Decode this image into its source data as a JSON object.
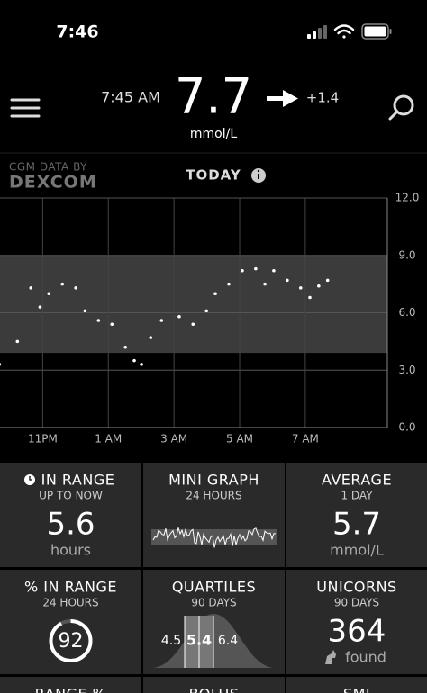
{
  "status_bar": {
    "time": "7:46"
  },
  "header": {
    "reading_time": "7:45 AM",
    "value": "7.7",
    "unit": "mmol/L",
    "delta": "+1.4"
  },
  "source": {
    "line1": "CGM DATA BY",
    "line2": "DEXCOM"
  },
  "chart_data": {
    "type": "scatter",
    "title": "TODAY",
    "x": [
      -2.32,
      -1.77,
      -1.36,
      -1.08,
      -0.81,
      -0.4,
      0.01,
      0.29,
      0.7,
      1.11,
      1.52,
      1.79,
      2.01,
      2.29,
      2.62,
      3.16,
      3.58,
      3.99,
      4.26,
      4.67,
      5.08,
      5.49,
      5.77,
      6.04,
      6.45,
      6.86,
      7.14,
      7.41,
      7.68
    ],
    "values": [
      3.3,
      4.5,
      7.3,
      6.3,
      7.0,
      7.5,
      7.3,
      6.1,
      5.6,
      5.4,
      4.2,
      3.5,
      3.3,
      4.7,
      5.6,
      5.8,
      5.4,
      6.1,
      7.0,
      7.5,
      8.2,
      8.3,
      7.5,
      8.2,
      7.7,
      7.3,
      6.8,
      7.4,
      7.7
    ],
    "color": "#ffffff",
    "xlim": [
      -2.3,
      9.5
    ],
    "xticks": [
      {
        "value": -1,
        "label": "11PM"
      },
      {
        "value": 1,
        "label": "1 AM"
      },
      {
        "value": 3,
        "label": "3 AM"
      },
      {
        "value": 5,
        "label": "5 AM"
      },
      {
        "value": 7,
        "label": "7 AM"
      }
    ],
    "ylim": [
      0,
      12
    ],
    "yticks": [
      {
        "value": 0,
        "label": "0.0"
      },
      {
        "value": 3,
        "label": "3.0"
      },
      {
        "value": 6,
        "label": "6.0"
      },
      {
        "value": 9,
        "label": "9.0"
      },
      {
        "value": 12,
        "label": "12.0"
      }
    ],
    "target_range": [
      3.9,
      9.0
    ],
    "low_line": 2.8,
    "grid": true
  },
  "tiles": [
    {
      "title": "IN RANGE",
      "subtitle": "UP TO NOW",
      "value": "5.6",
      "unit": "hours"
    },
    {
      "title": "MINI GRAPH",
      "subtitle": "24 HOURS"
    },
    {
      "title": "AVERAGE",
      "subtitle": "1 DAY",
      "value": "5.7",
      "unit": "mmol/L"
    },
    {
      "title": "% IN RANGE",
      "subtitle": "24 HOURS",
      "percent": 92
    },
    {
      "title": "QUARTILES",
      "subtitle": "90 DAYS",
      "q1": "4.5",
      "median": "5.4",
      "q3": "6.4"
    },
    {
      "title": "UNICORNS",
      "subtitle": "90 DAYS",
      "value": "364",
      "unit": "found"
    },
    {
      "title": "RANGE %"
    },
    {
      "title": "BOLUS"
    },
    {
      "title": "SMI"
    }
  ]
}
